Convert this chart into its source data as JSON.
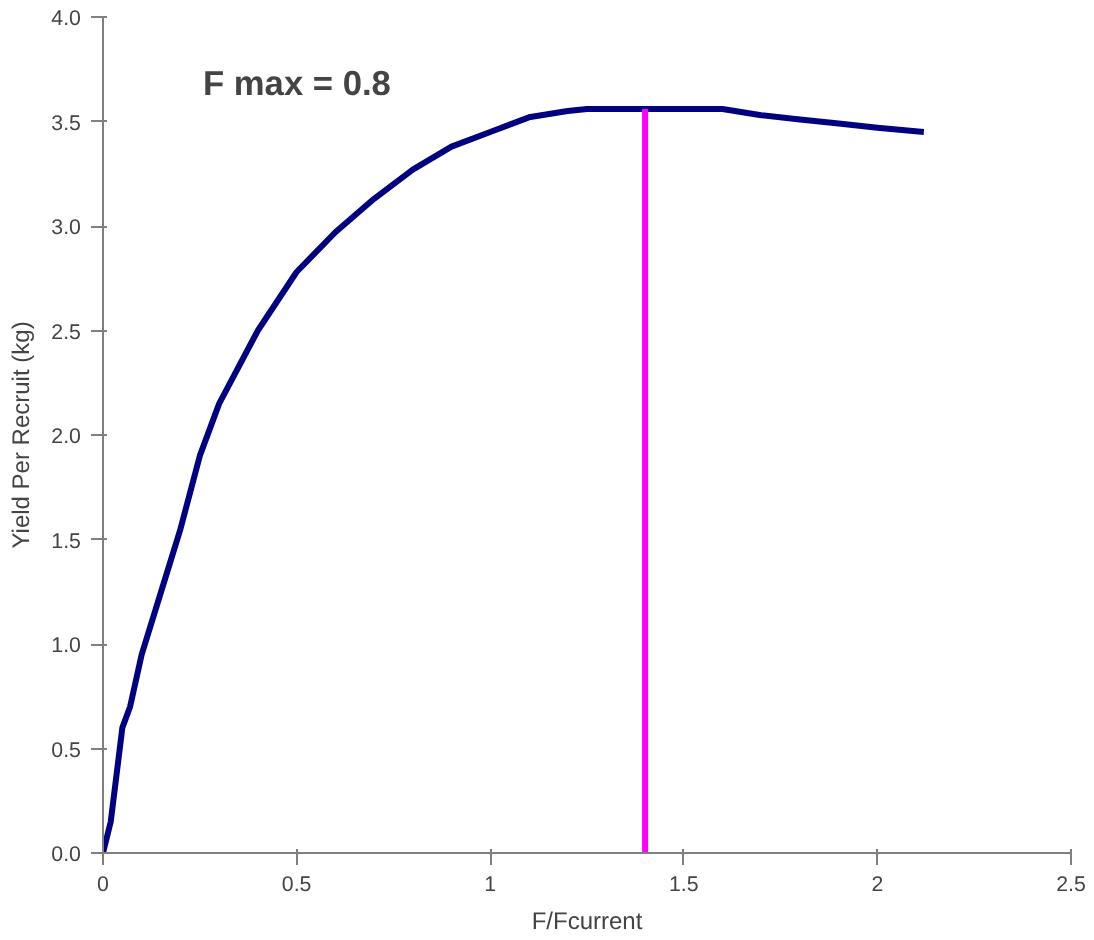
{
  "chart_data": {
    "type": "line",
    "xlabel": "F/Fcurrent",
    "ylabel": "Yield Per Recruit (kg)",
    "annotations": [
      "F max = 0.8"
    ],
    "xlim": [
      0,
      2.5
    ],
    "xticks": [
      0,
      0.5,
      1,
      1.5,
      2,
      2.5
    ],
    "ylim": [
      0,
      4.0
    ],
    "yticks": [
      {
        "value": 0,
        "label": "0.0"
      },
      {
        "value": 0.5,
        "label": "0.5"
      },
      {
        "value": 1,
        "label": "1.0"
      },
      {
        "value": 1.5,
        "label": "1.5"
      },
      {
        "value": 2,
        "label": "2.0"
      },
      {
        "value": 2.5,
        "label": "2.5"
      },
      {
        "value": 3,
        "label": "3.0"
      },
      {
        "value": 3.5,
        "label": "3.5"
      },
      {
        "value": 4,
        "label": "4.0"
      }
    ],
    "grid": false,
    "line_style": "solid",
    "marker": "none",
    "series": [
      {
        "color": "#000080",
        "x": [
          0,
          0.02,
          0.05,
          0.07,
          0.1,
          0.15,
          0.2,
          0.25,
          0.3,
          0.4,
          0.5,
          0.6,
          0.7,
          0.8,
          0.9,
          1.0,
          1.1,
          1.2,
          1.25,
          1.4,
          1.6,
          1.7,
          1.8,
          1.9,
          2.0,
          2.12
        ],
        "values": [
          0,
          0.15,
          0.6,
          0.7,
          0.95,
          1.25,
          1.55,
          1.9,
          2.15,
          2.5,
          2.78,
          2.97,
          3.13,
          3.27,
          3.38,
          3.45,
          3.52,
          3.55,
          3.56,
          3.56,
          3.56,
          3.53,
          3.51,
          3.49,
          3.47,
          3.45
        ]
      },
      {
        "color": "#ff00ff",
        "x": [
          1.4,
          1.4
        ],
        "values": [
          0,
          3.56
        ]
      }
    ]
  }
}
